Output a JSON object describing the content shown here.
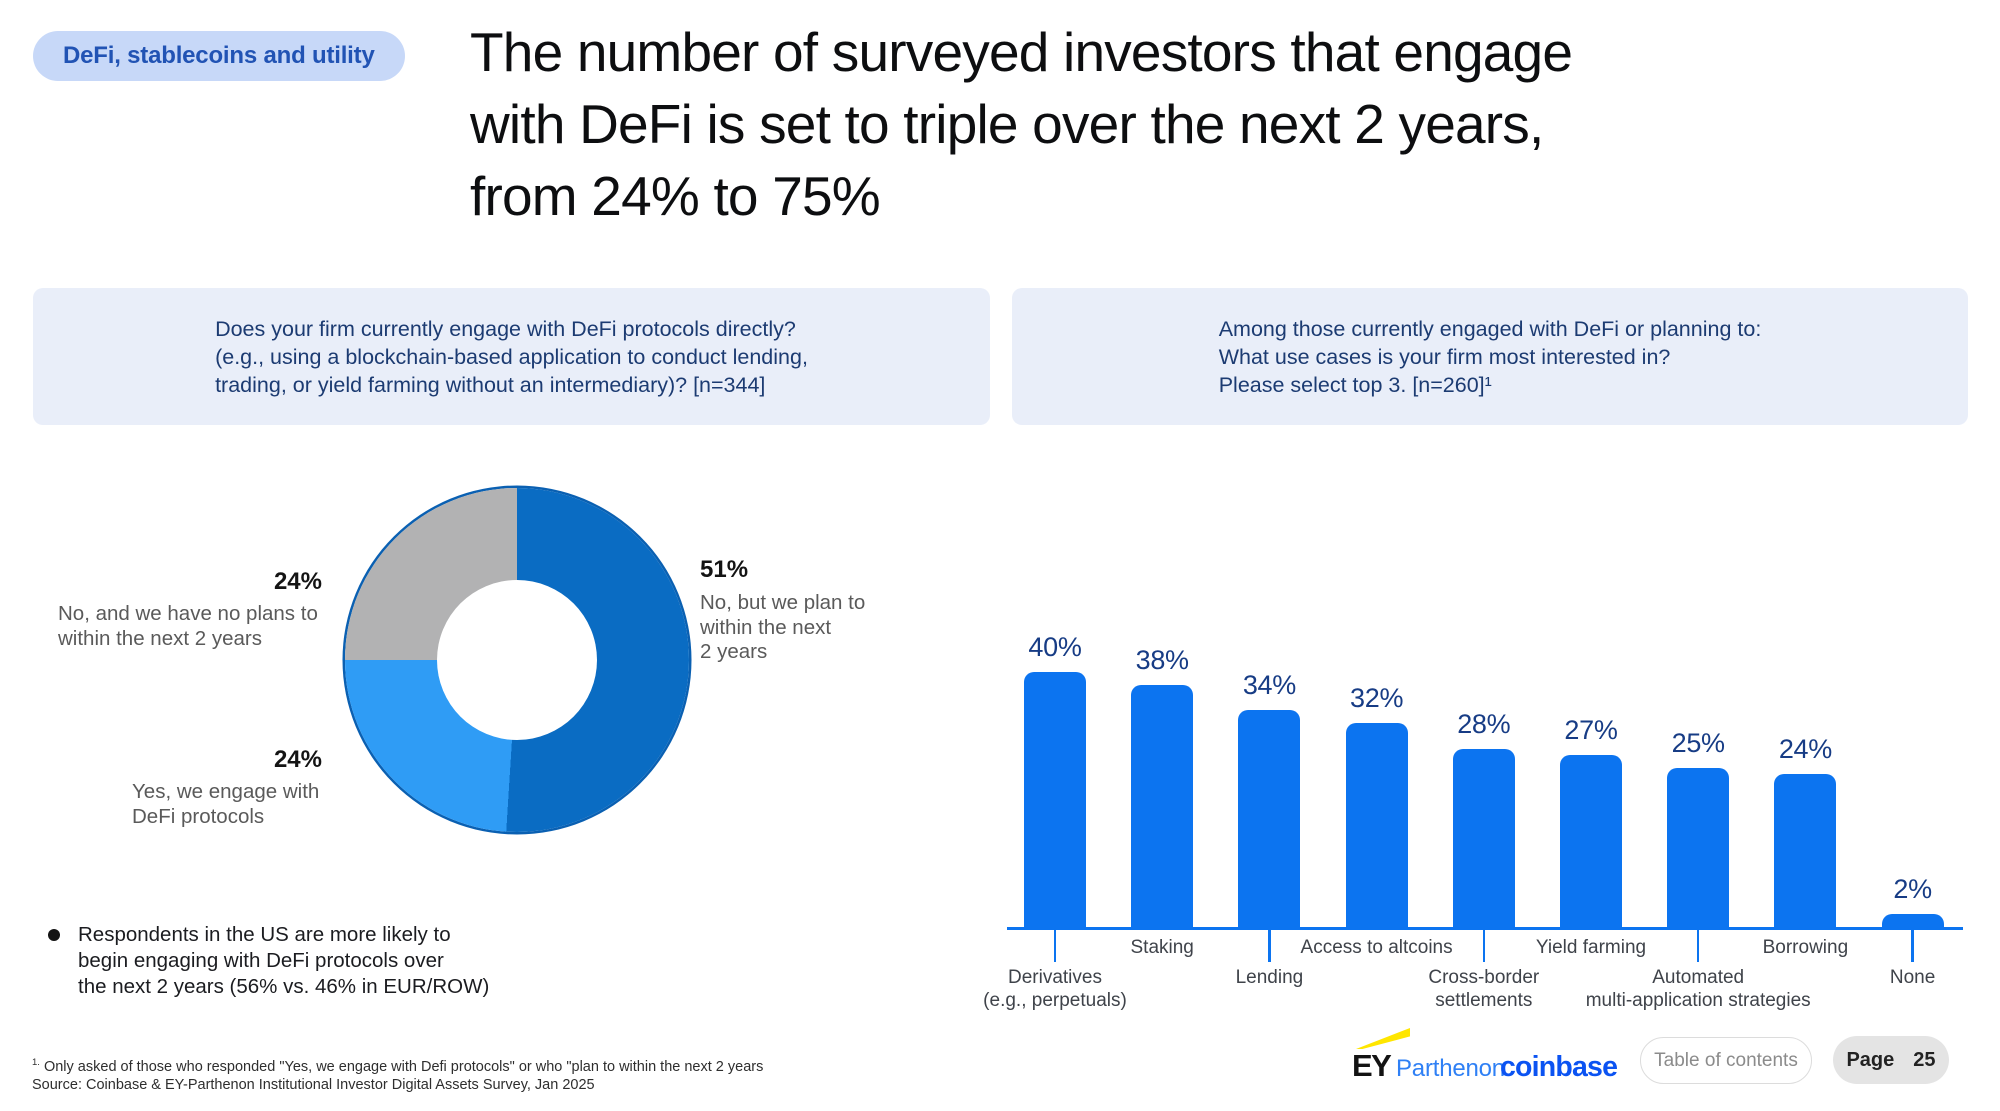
{
  "badge": {
    "label": "DeFi, stablecoins and utility"
  },
  "title": "The number of surveyed investors that engage\nwith DeFi is set to triple over the next 2 years,\nfrom 24% to 75%",
  "questions": {
    "left": "Does your firm currently engage with DeFi protocols directly?\n(e.g., using a blockchain-based application to conduct lending,\ntrading, or yield farming without an intermediary)? [n=344]",
    "right": "Among those currently engaged with DeFi or planning to:\nWhat use cases is your firm most interested in?\nPlease select top 3. [n=260]¹"
  },
  "donut_labels": {
    "plan": {
      "pct": "51%",
      "desc": "No, but we plan to\nwithin the next\n2 years"
    },
    "no_plans": {
      "pct": "24%",
      "desc": "No, and we have no plans to\nwithin the next 2 years"
    },
    "yes": {
      "pct": "24%",
      "desc": "Yes, we engage with\nDeFi protocols"
    }
  },
  "note": {
    "text": "Respondents in the US are more likely to\nbegin engaging with DeFi protocols over\nthe next 2 years (56% vs. 46% in EUR/ROW)"
  },
  "footnotes": {
    "sup": "1.",
    "line1": "Only asked of those who responded \"Yes, we engage with Defi protocols\" or who \"plan to within the next 2 years",
    "source": "Source: Coinbase & EY-Parthenon Institutional Investor Digital Assets Survey, Jan 2025"
  },
  "footer": {
    "ey_letters": "EY",
    "ey_sub": "Parthenon",
    "coinbase": "coinbase",
    "toc_label": "Table of contents",
    "page_label": "Page",
    "page_number": "25"
  },
  "colors": {
    "bar_blue": "#0c74f0",
    "value_label_navy": "#173c85",
    "donut_dark_blue": "#0a6cc3",
    "donut_light_blue": "#2f9cf5",
    "donut_gray": "#b2b2b3",
    "donut_outline": "#0a60b2",
    "badge_bg": "#c7d8f8",
    "badge_text": "#2153b4",
    "question_text": "#1c3b72"
  },
  "chart_data": [
    {
      "type": "pie",
      "donut": true,
      "title": "Does your firm currently engage with DeFi protocols directly? [n=344]",
      "slices": [
        {
          "label": "No, but we plan to within the next 2 years",
          "value": 51,
          "pct_label": "51%",
          "color": "#0a6cc3"
        },
        {
          "label": "Yes, we engage with DeFi protocols",
          "value": 24,
          "pct_label": "24%",
          "color": "#2f9cf5"
        },
        {
          "label": "No, and we have no plans to within the next 2 years",
          "value": 24,
          "pct_label": "24%",
          "color": "#b2b2b3"
        }
      ],
      "legend_position": "around-chart"
    },
    {
      "type": "bar",
      "title": "What use cases is your firm most interested in? Please select top 3. [n=260]",
      "categories": [
        "Derivatives (e.g., perpetuals)",
        "Staking",
        "Lending",
        "Access to altcoins",
        "Cross-border settlements",
        "Yield farming",
        "Automated multi-application strategies",
        "Borrowing",
        "None"
      ],
      "categories_display": [
        "Derivatives\n(e.g., perpetuals)",
        "Staking",
        "Lending",
        "Access to altcoins",
        "Cross-border\nsettlements",
        "Yield farming",
        "Automated\nmulti-application strategies",
        "Borrowing",
        "None"
      ],
      "values": [
        40,
        38,
        34,
        32,
        28,
        27,
        25,
        24,
        2
      ],
      "value_labels": [
        "40%",
        "38%",
        "34%",
        "32%",
        "28%",
        "27%",
        "25%",
        "24%",
        "2%"
      ],
      "xlabel": "",
      "ylabel": "",
      "ylim": [
        0,
        45
      ],
      "grid": false,
      "legend": false,
      "bar_color": "#0c74f0"
    }
  ]
}
